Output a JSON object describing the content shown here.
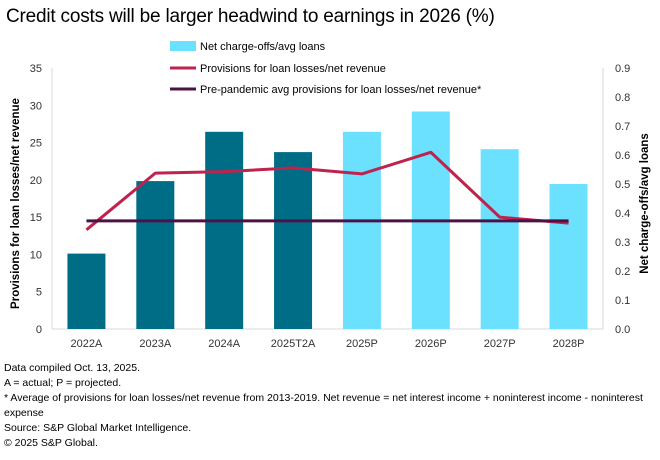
{
  "title": "Credit costs will be larger headwind to earnings in 2026 (%)",
  "chart_data": {
    "type": "bar",
    "title": "Credit costs will be larger headwind to earnings in 2026 (%)",
    "categories": [
      "2022A",
      "2023A",
      "2024A",
      "2025T2A",
      "2025P",
      "2026P",
      "2027P",
      "2028P"
    ],
    "ylabel": "Provisions for loan losses/net revenue",
    "y2label": "Net charge-offs/avg loans",
    "ylim": [
      0,
      35
    ],
    "y2lim": [
      0,
      0.9
    ],
    "yticks": [
      "0",
      "5",
      "10",
      "15",
      "20",
      "25",
      "30",
      "35"
    ],
    "y2ticks": [
      "0.0",
      "0.1",
      "0.2",
      "0.3",
      "0.4",
      "0.5",
      "0.6",
      "0.7",
      "0.8",
      "0.9"
    ],
    "grid": false,
    "legend_position": "top",
    "series": [
      {
        "name": "Net charge-offs/avg loans",
        "type": "bar",
        "axis": "right",
        "values": [
          0.26,
          0.51,
          0.68,
          0.61,
          0.68,
          0.75,
          0.62,
          0.5
        ],
        "colors": [
          "#006D87",
          "#006D87",
          "#006D87",
          "#006D87",
          "#6BE0FF",
          "#6BE0FF",
          "#6BE0FF",
          "#6BE0FF"
        ],
        "legend_color": "#6BE0FF"
      },
      {
        "name": "Provisions for loan losses/net revenue",
        "type": "line",
        "axis": "left",
        "values": [
          13.3,
          20.9,
          21.1,
          21.6,
          20.8,
          23.7,
          15.0,
          14.2
        ],
        "color": "#C0224E"
      },
      {
        "name": "Pre-pandemic avg provisions for loan losses/net revenue*",
        "type": "line",
        "axis": "left",
        "values": [
          14.5,
          14.5,
          14.5,
          14.5,
          14.5,
          14.5,
          14.5,
          14.5
        ],
        "color": "#4B1248"
      }
    ]
  },
  "footer": {
    "compiled": "Data compiled Oct. 13, 2025.",
    "legend_note": "A = actual; P = projected.",
    "footnote": "* Average of provisions for loan losses/net revenue from 2013-2019. Net revenue = net interest income + noninterest income - noninterest expense",
    "source": "Source: S&P Global Market Intelligence.",
    "copyright": "© 2025 S&P Global."
  }
}
